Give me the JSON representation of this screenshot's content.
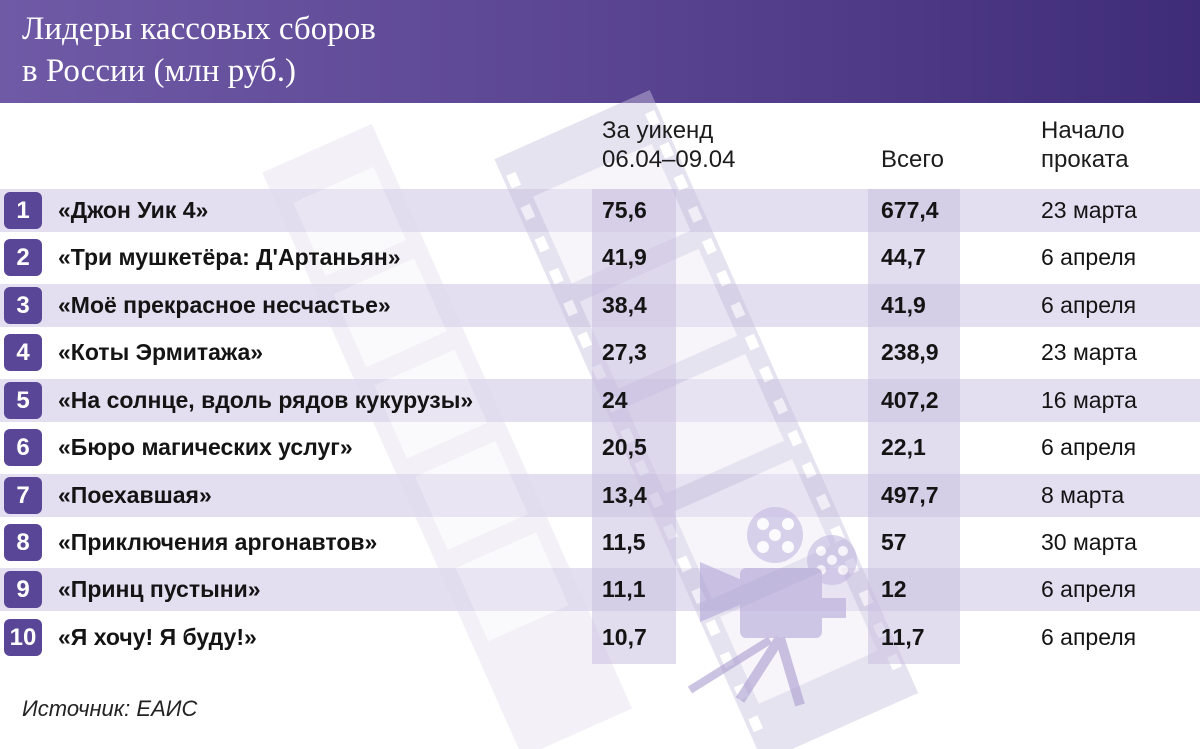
{
  "title_lines": [
    "Лидеры кассовых сборов",
    "в России (млн руб.)"
  ],
  "headers": {
    "weekend": [
      "За уикенд",
      "06.04–09.04"
    ],
    "total": [
      "Всего"
    ],
    "start": [
      "Начало",
      "проката"
    ]
  },
  "rows": [
    {
      "rank": "1",
      "title": "«Джон Уик 4»",
      "weekend": "75,6",
      "total": "677,4",
      "start": "23 марта"
    },
    {
      "rank": "2",
      "title": "«Три мушкетёра: Д'Артаньян»",
      "weekend": "41,9",
      "total": "44,7",
      "start": "6 апреля"
    },
    {
      "rank": "3",
      "title": "«Моё прекрасное несчастье»",
      "weekend": "38,4",
      "total": "41,9",
      "start": "6 апреля"
    },
    {
      "rank": "4",
      "title": "«Коты Эрмитажа»",
      "weekend": "27,3",
      "total": "238,9",
      "start": "23 марта"
    },
    {
      "rank": "5",
      "title": "«На солнце, вдоль рядов кукурузы»",
      "weekend": "24",
      "total": "407,2",
      "start": "16 марта"
    },
    {
      "rank": "6",
      "title": "«Бюро магических услуг»",
      "weekend": "20,5",
      "total": "22,1",
      "start": "6 апреля"
    },
    {
      "rank": "7",
      "title": "«Поехавшая»",
      "weekend": "13,4",
      "total": "497,7",
      "start": "8 марта"
    },
    {
      "rank": "8",
      "title": "«Приключения аргонавтов»",
      "weekend": "11,5",
      "total": "57",
      "start": "30 марта"
    },
    {
      "rank": "9",
      "title": "«Принц пустыни»",
      "weekend": "11,1",
      "total": "12",
      "start": "6 апреля"
    },
    {
      "rank": "10",
      "title": "«Я хочу! Я буду!»",
      "weekend": "10,7",
      "total": "11,7",
      "start": "6 апреля"
    }
  ],
  "source": "Источник: ЕАИС",
  "colors": {
    "header_start": "#6f5aa6",
    "header_end": "#3f2c78",
    "badge": "#5a4696",
    "band": "#e4dff0",
    "column_highlight": "#c9c0e0",
    "decoration": "#b8b0d4"
  },
  "icons": [
    "film-strip-icon",
    "movie-projector-icon"
  ],
  "chart_data": {
    "type": "table",
    "columns": [
      "",
      "",
      "За уикенд 06.04–09.04",
      "Всего",
      "Начало проката"
    ],
    "rows": [
      [
        "1",
        "«Джон Уик 4»",
        75.6,
        677.4,
        "23 марта"
      ],
      [
        "2",
        "«Три мушкетёра: Д'Артаньян»",
        41.9,
        44.7,
        "6 апреля"
      ],
      [
        "3",
        "«Моё прекрасное несчастье»",
        38.4,
        41.9,
        "6 апреля"
      ],
      [
        "4",
        "«Коты Эрмитажа»",
        27.3,
        238.9,
        "23 марта"
      ],
      [
        "5",
        "«На солнце, вдоль рядов кукурузы»",
        24,
        407.2,
        "16 марта"
      ],
      [
        "6",
        "«Бюро магических услуг»",
        20.5,
        22.1,
        "6 апреля"
      ],
      [
        "7",
        "«Поехавшая»",
        13.4,
        497.7,
        "8 марта"
      ],
      [
        "8",
        "«Приключения аргонавтов»",
        11.5,
        57,
        "30 марта"
      ],
      [
        "9",
        "«Принц пустыни»",
        11.1,
        12,
        "6 апреля"
      ],
      [
        "10",
        "«Я хочу! Я буду!»",
        10.7,
        11.7,
        "6 апреля"
      ]
    ]
  }
}
